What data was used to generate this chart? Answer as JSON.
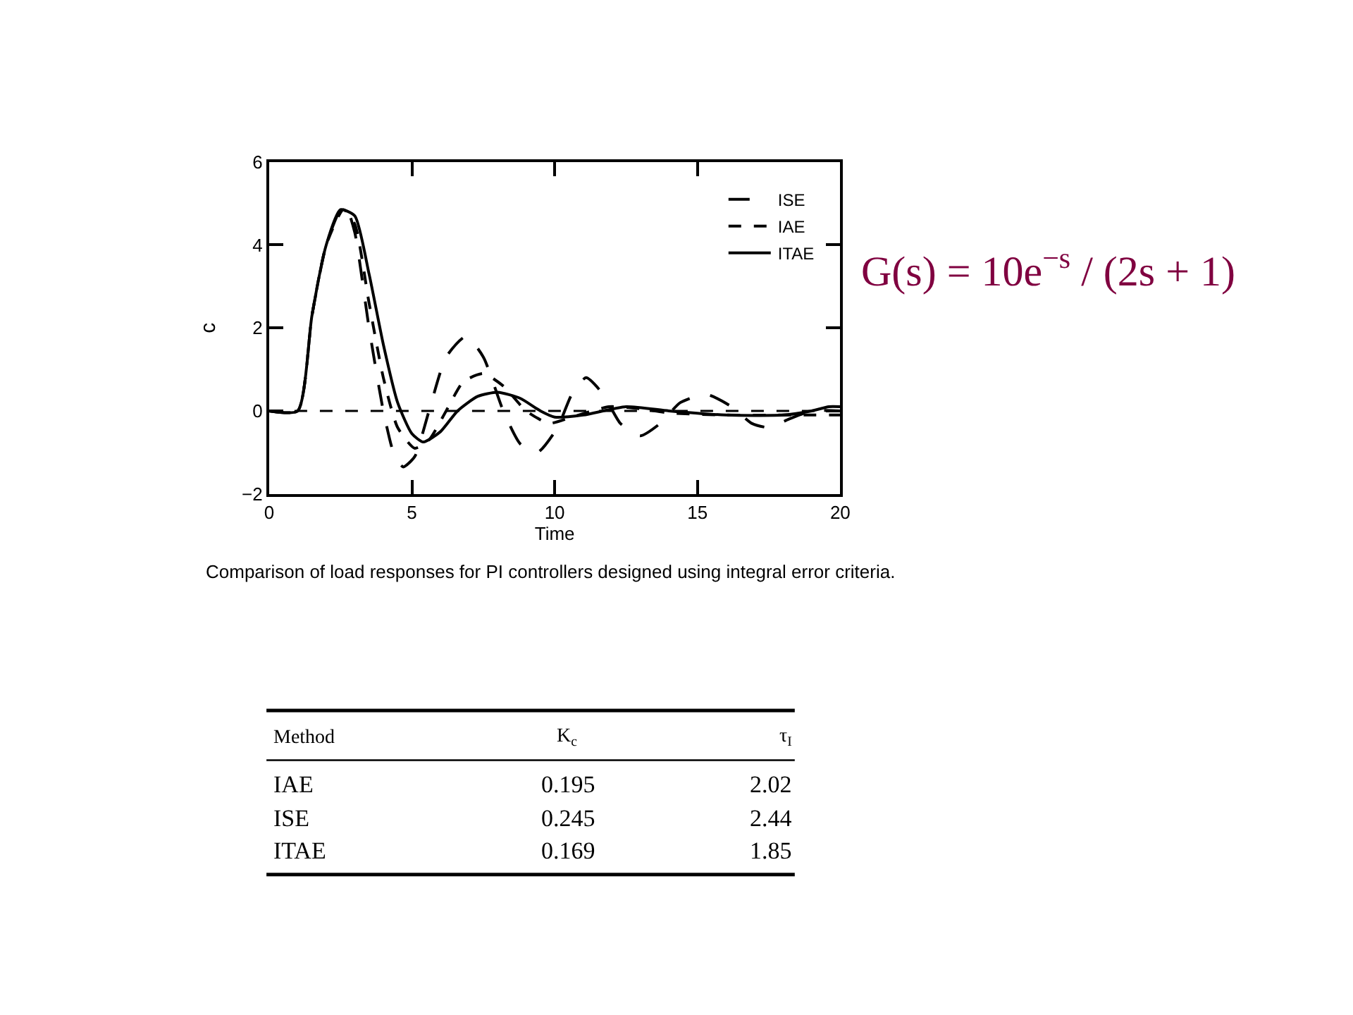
{
  "chart_data": {
    "type": "line",
    "xlabel": "Time",
    "ylabel": "c",
    "xlim": [
      0,
      20
    ],
    "xticks": [
      0,
      5,
      10,
      15,
      20
    ],
    "ylim": [
      -2,
      6
    ],
    "yticks": [
      {
        "value": -2,
        "label": "−2"
      },
      0,
      2,
      4,
      6
    ],
    "grid": false,
    "legend": "top right",
    "marker": "none",
    "ref_lines": [
      {
        "axis": "y",
        "value": 0,
        "label": null,
        "line_style": "dashed",
        "color": "#000000"
      }
    ],
    "series": [
      {
        "name": "ISE",
        "color": "#000000",
        "line_style": "dashed",
        "x": [
          0,
          1,
          1.5,
          2,
          2.5,
          2.7,
          3,
          3.5,
          4,
          4.4,
          4.7,
          5.1,
          5.6,
          6.2,
          6.9,
          7.5,
          8.2,
          8.8,
          9.4,
          10.1,
          10.6,
          11.1,
          11.7,
          12.3,
          13.0,
          13.7,
          14.4,
          15.3,
          16.2,
          16.9,
          17.5,
          18.2,
          19,
          20
        ],
        "values": [
          0,
          0,
          2.3,
          4.0,
          4.85,
          4.9,
          4.3,
          2.0,
          0.0,
          -1.1,
          -1.35,
          -1.1,
          0,
          1.3,
          1.8,
          1.3,
          0,
          -0.8,
          -1.0,
          -0.4,
          0.4,
          0.8,
          0.4,
          -0.3,
          -0.6,
          -0.3,
          0.2,
          0.4,
          0.1,
          -0.3,
          -0.4,
          -0.2,
          0.0,
          0.0
        ]
      },
      {
        "name": "IAE",
        "color": "#000000",
        "line_style": "dashed",
        "x": [
          0,
          1,
          1.5,
          2,
          2.6,
          3,
          3.5,
          4,
          4.5,
          5.1,
          5.6,
          6.2,
          6.8,
          7.5,
          8.2,
          9,
          9.8,
          10.6,
          11.9,
          13,
          14,
          16,
          18,
          20
        ],
        "values": [
          0,
          0,
          2.3,
          4.0,
          4.85,
          4.5,
          2.6,
          0.8,
          -0.4,
          -0.9,
          -0.7,
          0,
          0.7,
          0.9,
          0.6,
          0,
          -0.3,
          -0.15,
          0.1,
          0.05,
          -0.05,
          -0.1,
          -0.1,
          -0.1
        ]
      },
      {
        "name": "ITAE",
        "color": "#000000",
        "line_style": "solid",
        "x": [
          0,
          1,
          1.5,
          2,
          2.5,
          3,
          3.5,
          4,
          4.5,
          5,
          5.4,
          6,
          6.6,
          7.3,
          8,
          8.8,
          9.5,
          10,
          11,
          12.5,
          14,
          16,
          18,
          19,
          19.6,
          20
        ],
        "values": [
          0,
          0,
          2.3,
          4.0,
          4.85,
          4.7,
          3.3,
          1.6,
          0.2,
          -0.55,
          -0.75,
          -0.5,
          0,
          0.35,
          0.45,
          0.3,
          0,
          -0.15,
          -0.1,
          0.1,
          0,
          -0.1,
          -0.1,
          0,
          0.1,
          0.1
        ]
      }
    ],
    "annotations": [
      "Comparison of load responses for PI controllers designed using integral error criteria.",
      "G(s) = 10e$^{−s}$ / (2s + 1)",
      "Method",
      "K$_{c}$",
      "τ$_{I}$",
      "IAE",
      "0.195",
      "2.02",
      "ISE",
      "0.245",
      "2.44",
      "ITAE",
      "0.169",
      "1.85"
    ]
  }
}
